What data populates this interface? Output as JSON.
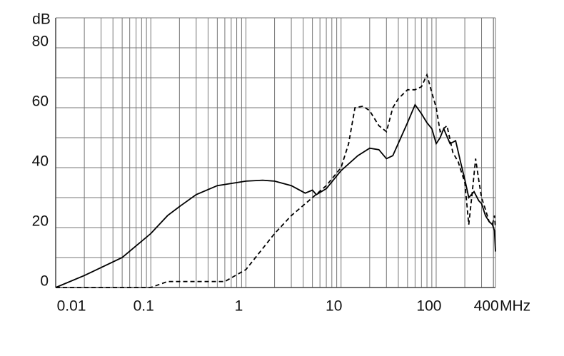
{
  "chart_data": {
    "type": "line",
    "y_label": "dB",
    "x_label": "MHz",
    "xscale": "log",
    "xlim": [
      0.01,
      420
    ],
    "xticks": [
      0.01,
      0.1,
      1,
      10,
      100,
      400
    ],
    "ylim": [
      0,
      90
    ],
    "yticks": [
      0,
      20,
      40,
      60,
      80
    ],
    "ygrid": [
      10,
      30,
      50,
      70,
      90
    ],
    "grid": true,
    "series": [
      {
        "color": "#000000",
        "style": "solid",
        "x": [
          0.01,
          0.02,
          0.05,
          0.1,
          0.15,
          0.2,
          0.3,
          0.5,
          1,
          1.5,
          2,
          3,
          4.2,
          5,
          5.5,
          7,
          10,
          15,
          20,
          25,
          30,
          35,
          50,
          60,
          70,
          80,
          90,
          100,
          110,
          120,
          140,
          160,
          180,
          200,
          220,
          250,
          280,
          300,
          330,
          360,
          390,
          410,
          420
        ],
        "values": [
          0,
          4,
          10,
          18,
          24,
          27,
          31,
          34,
          35.5,
          35.8,
          35.5,
          34,
          31.5,
          32.5,
          31,
          33,
          39,
          44,
          46.5,
          46,
          43,
          44,
          55,
          61,
          58,
          55,
          53,
          48,
          50,
          53,
          48,
          49,
          42,
          36,
          30,
          32,
          29,
          28,
          24,
          22,
          21,
          19,
          12
        ]
      },
      {
        "color": "#000000",
        "style": "dashed",
        "x": [
          0.01,
          0.1,
          0.15,
          0.2,
          0.6,
          1,
          1.5,
          2,
          3,
          5,
          7,
          10,
          12,
          14,
          17,
          20,
          25,
          30,
          35,
          40,
          50,
          60,
          70,
          80,
          90,
          100,
          110,
          130,
          150,
          170,
          200,
          220,
          240,
          260,
          280,
          300,
          330,
          360,
          390,
          410,
          420
        ],
        "values": [
          0,
          0,
          2,
          2,
          2,
          6,
          13,
          18,
          24,
          30,
          34,
          40,
          48,
          60,
          60.5,
          59,
          54,
          52,
          60,
          63,
          66,
          66,
          67,
          71,
          65,
          60,
          52,
          54,
          45,
          42,
          35,
          21,
          32,
          43,
          36,
          30,
          26,
          22,
          21,
          24,
          20
        ]
      }
    ]
  }
}
